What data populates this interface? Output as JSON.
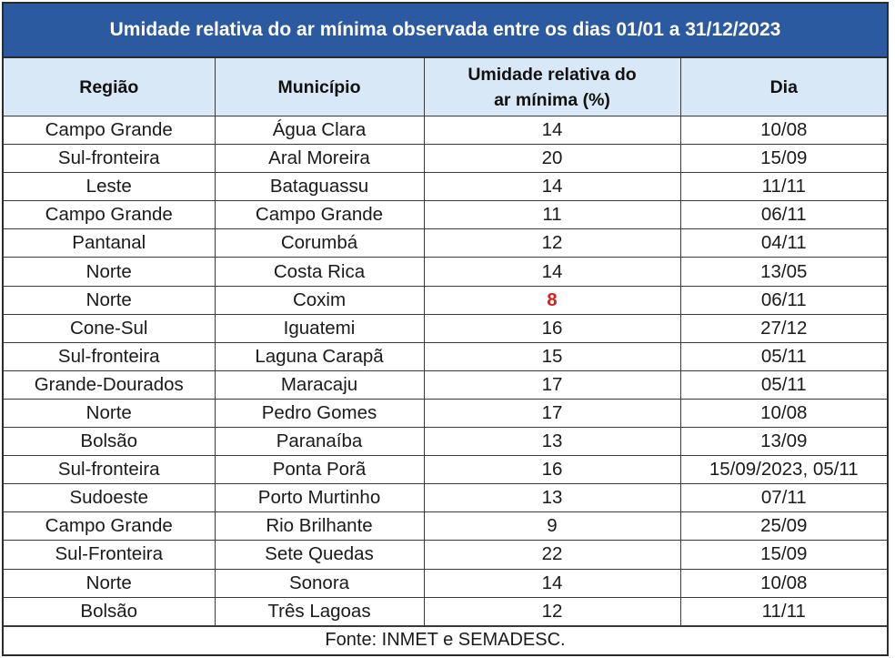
{
  "title": "Umidade relativa do ar mínima observada entre os dias 01/01 a 31/12/2023",
  "columns": {
    "regiao": "Região",
    "municipio": "Município",
    "umidade": "Umidade relativa do ar mínima (%)",
    "dia": "Dia"
  },
  "rows": [
    {
      "regiao": "Campo Grande",
      "municipio": "Água Clara",
      "umidade": "14",
      "dia": "10/08"
    },
    {
      "regiao": "Sul-fronteira",
      "municipio": "Aral Moreira",
      "umidade": "20",
      "dia": "15/09"
    },
    {
      "regiao": "Leste",
      "municipio": "Bataguassu",
      "umidade": "14",
      "dia": "11/11"
    },
    {
      "regiao": "Campo Grande",
      "municipio": "Campo Grande",
      "umidade": "11",
      "dia": "06/11"
    },
    {
      "regiao": "Pantanal",
      "municipio": "Corumbá",
      "umidade": "12",
      "dia": "04/11"
    },
    {
      "regiao": "Norte",
      "municipio": "Costa Rica",
      "umidade": "14",
      "dia": "13/05"
    },
    {
      "regiao": "Norte",
      "municipio": "Coxim",
      "umidade": "8",
      "dia": "06/11",
      "highlight": true
    },
    {
      "regiao": "Cone-Sul",
      "municipio": "Iguatemi",
      "umidade": "16",
      "dia": "27/12"
    },
    {
      "regiao": "Sul-fronteira",
      "municipio": "Laguna Carapã",
      "umidade": "15",
      "dia": "05/11"
    },
    {
      "regiao": "Grande-Dourados",
      "municipio": "Maracaju",
      "umidade": "17",
      "dia": "05/11"
    },
    {
      "regiao": "Norte",
      "municipio": "Pedro Gomes",
      "umidade": "17",
      "dia": "10/08"
    },
    {
      "regiao": "Bolsão",
      "municipio": "Paranaíba",
      "umidade": "13",
      "dia": "13/09"
    },
    {
      "regiao": "Sul-fronteira",
      "municipio": "Ponta Porã",
      "umidade": "16",
      "dia": "15/09/2023, 05/11"
    },
    {
      "regiao": "Sudoeste",
      "municipio": "Porto Murtinho",
      "umidade": "13",
      "dia": "07/11"
    },
    {
      "regiao": "Campo Grande",
      "municipio": "Rio Brilhante",
      "umidade": "9",
      "dia": "25/09"
    },
    {
      "regiao": "Sul-Fronteira",
      "municipio": "Sete Quedas",
      "umidade": "22",
      "dia": "15/09"
    },
    {
      "regiao": "Norte",
      "municipio": "Sonora",
      "umidade": "14",
      "dia": "10/08"
    },
    {
      "regiao": "Bolsão",
      "municipio": "Três Lagoas",
      "umidade": "12",
      "dia": "11/11"
    }
  ],
  "footer": "Fonte: INMET e SEMADESC.",
  "colors": {
    "title_bg": "#2c5aa0",
    "header_bg": "#d9e8f6",
    "highlight": "#d22020"
  }
}
